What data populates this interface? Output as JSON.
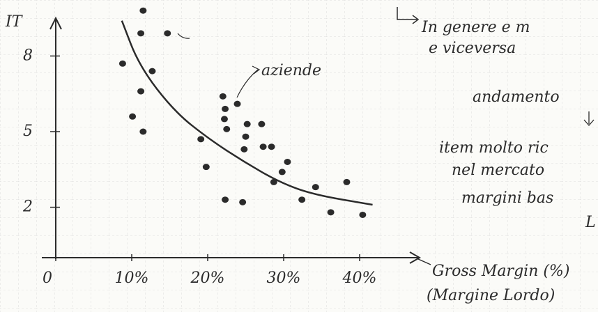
{
  "chart_data": {
    "type": "scatter",
    "y_label": "IT",
    "x_label": "Gross Margin (%)",
    "x_sublabel": "(Margine Lordo)",
    "annotations": [
      "aziende",
      "In genere e m",
      "e viceversa",
      "andamento",
      "item molto ric",
      "nel mercato",
      "margini bas",
      "L"
    ],
    "color": "#2b2b2b",
    "xlim": [
      0,
      47
    ],
    "ylim": [
      0,
      10
    ],
    "xticks": [
      0,
      {
        "value": 10,
        "label": "10%"
      },
      {
        "value": 20,
        "label": "20%"
      },
      {
        "value": 30,
        "label": "30%"
      },
      {
        "value": 40,
        "label": "40%"
      }
    ],
    "yticks": [
      2,
      5,
      8
    ],
    "series": [
      {
        "type": "scatter",
        "x": [
          11.5,
          11.2,
          14.7,
          8.8,
          12.7,
          11.2,
          10.1,
          11.5,
          19.1,
          19.8,
          22.0,
          22.3,
          23.9,
          22.2,
          22.5,
          25.2,
          27.1,
          25.0,
          24.8,
          27.3,
          28.4,
          30.5,
          29.8,
          28.7,
          22.3,
          24.6,
          32.4,
          34.2,
          38.3,
          36.2,
          40.4
        ],
        "values": [
          9.8,
          8.9,
          8.9,
          7.7,
          7.4,
          6.6,
          5.6,
          5.0,
          4.7,
          3.6,
          6.4,
          5.9,
          6.1,
          5.5,
          5.1,
          5.3,
          5.3,
          4.8,
          4.3,
          4.4,
          4.4,
          3.8,
          3.4,
          3.0,
          2.3,
          2.2,
          2.3,
          2.8,
          3.0,
          1.8,
          1.7
        ]
      },
      {
        "type": "line",
        "x": [
          8.7,
          11.0,
          15.6,
          20.2,
          24.8,
          29.4,
          33.9,
          41.7
        ],
        "values": [
          9.4,
          7.6,
          5.8,
          4.7,
          3.8,
          3.0,
          2.5,
          2.1
        ]
      }
    ]
  }
}
